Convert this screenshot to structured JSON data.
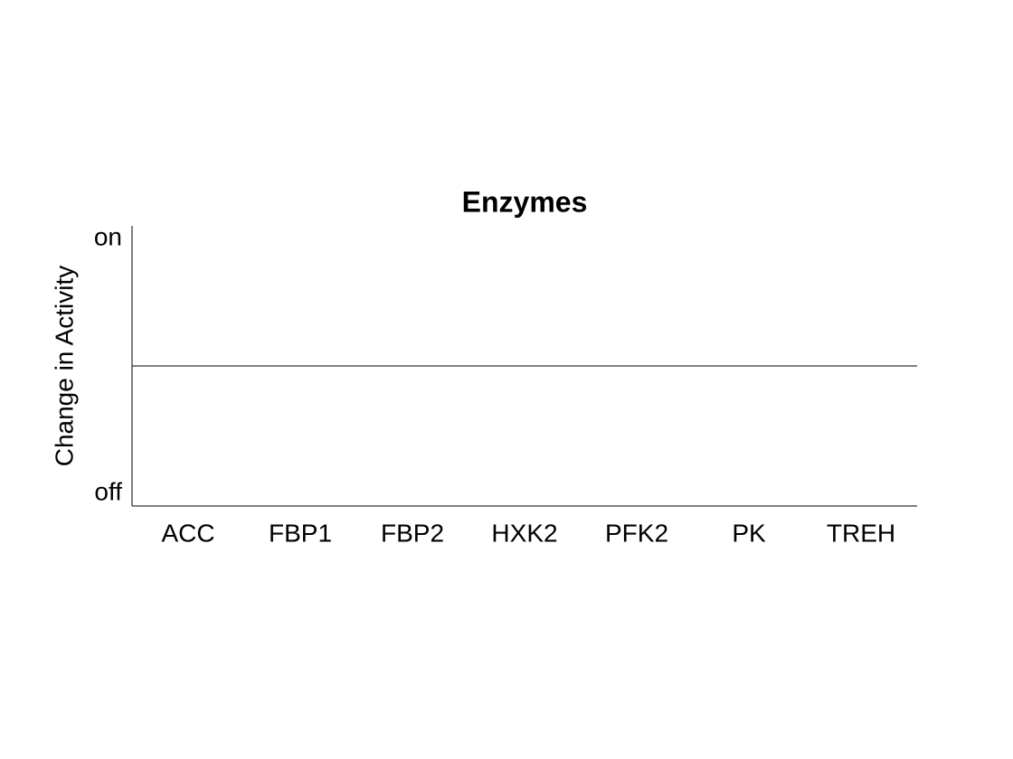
{
  "chart_data": {
    "type": "bar",
    "title": "Enzymes",
    "y_label": "Change in Activity",
    "categories": [
      "ACC",
      "FBP1",
      "FBP2",
      "HXK2",
      "PFK2",
      "PK",
      "TREH"
    ],
    "values": [
      0,
      0,
      0,
      0,
      0,
      0,
      0
    ],
    "color": "#4472c4",
    "ylim": [
      -1.1,
      1.1
    ],
    "yticks": [
      {
        "value": -1,
        "label": "off"
      },
      {
        "value": 1,
        "label": "on"
      }
    ],
    "grid": false
  }
}
